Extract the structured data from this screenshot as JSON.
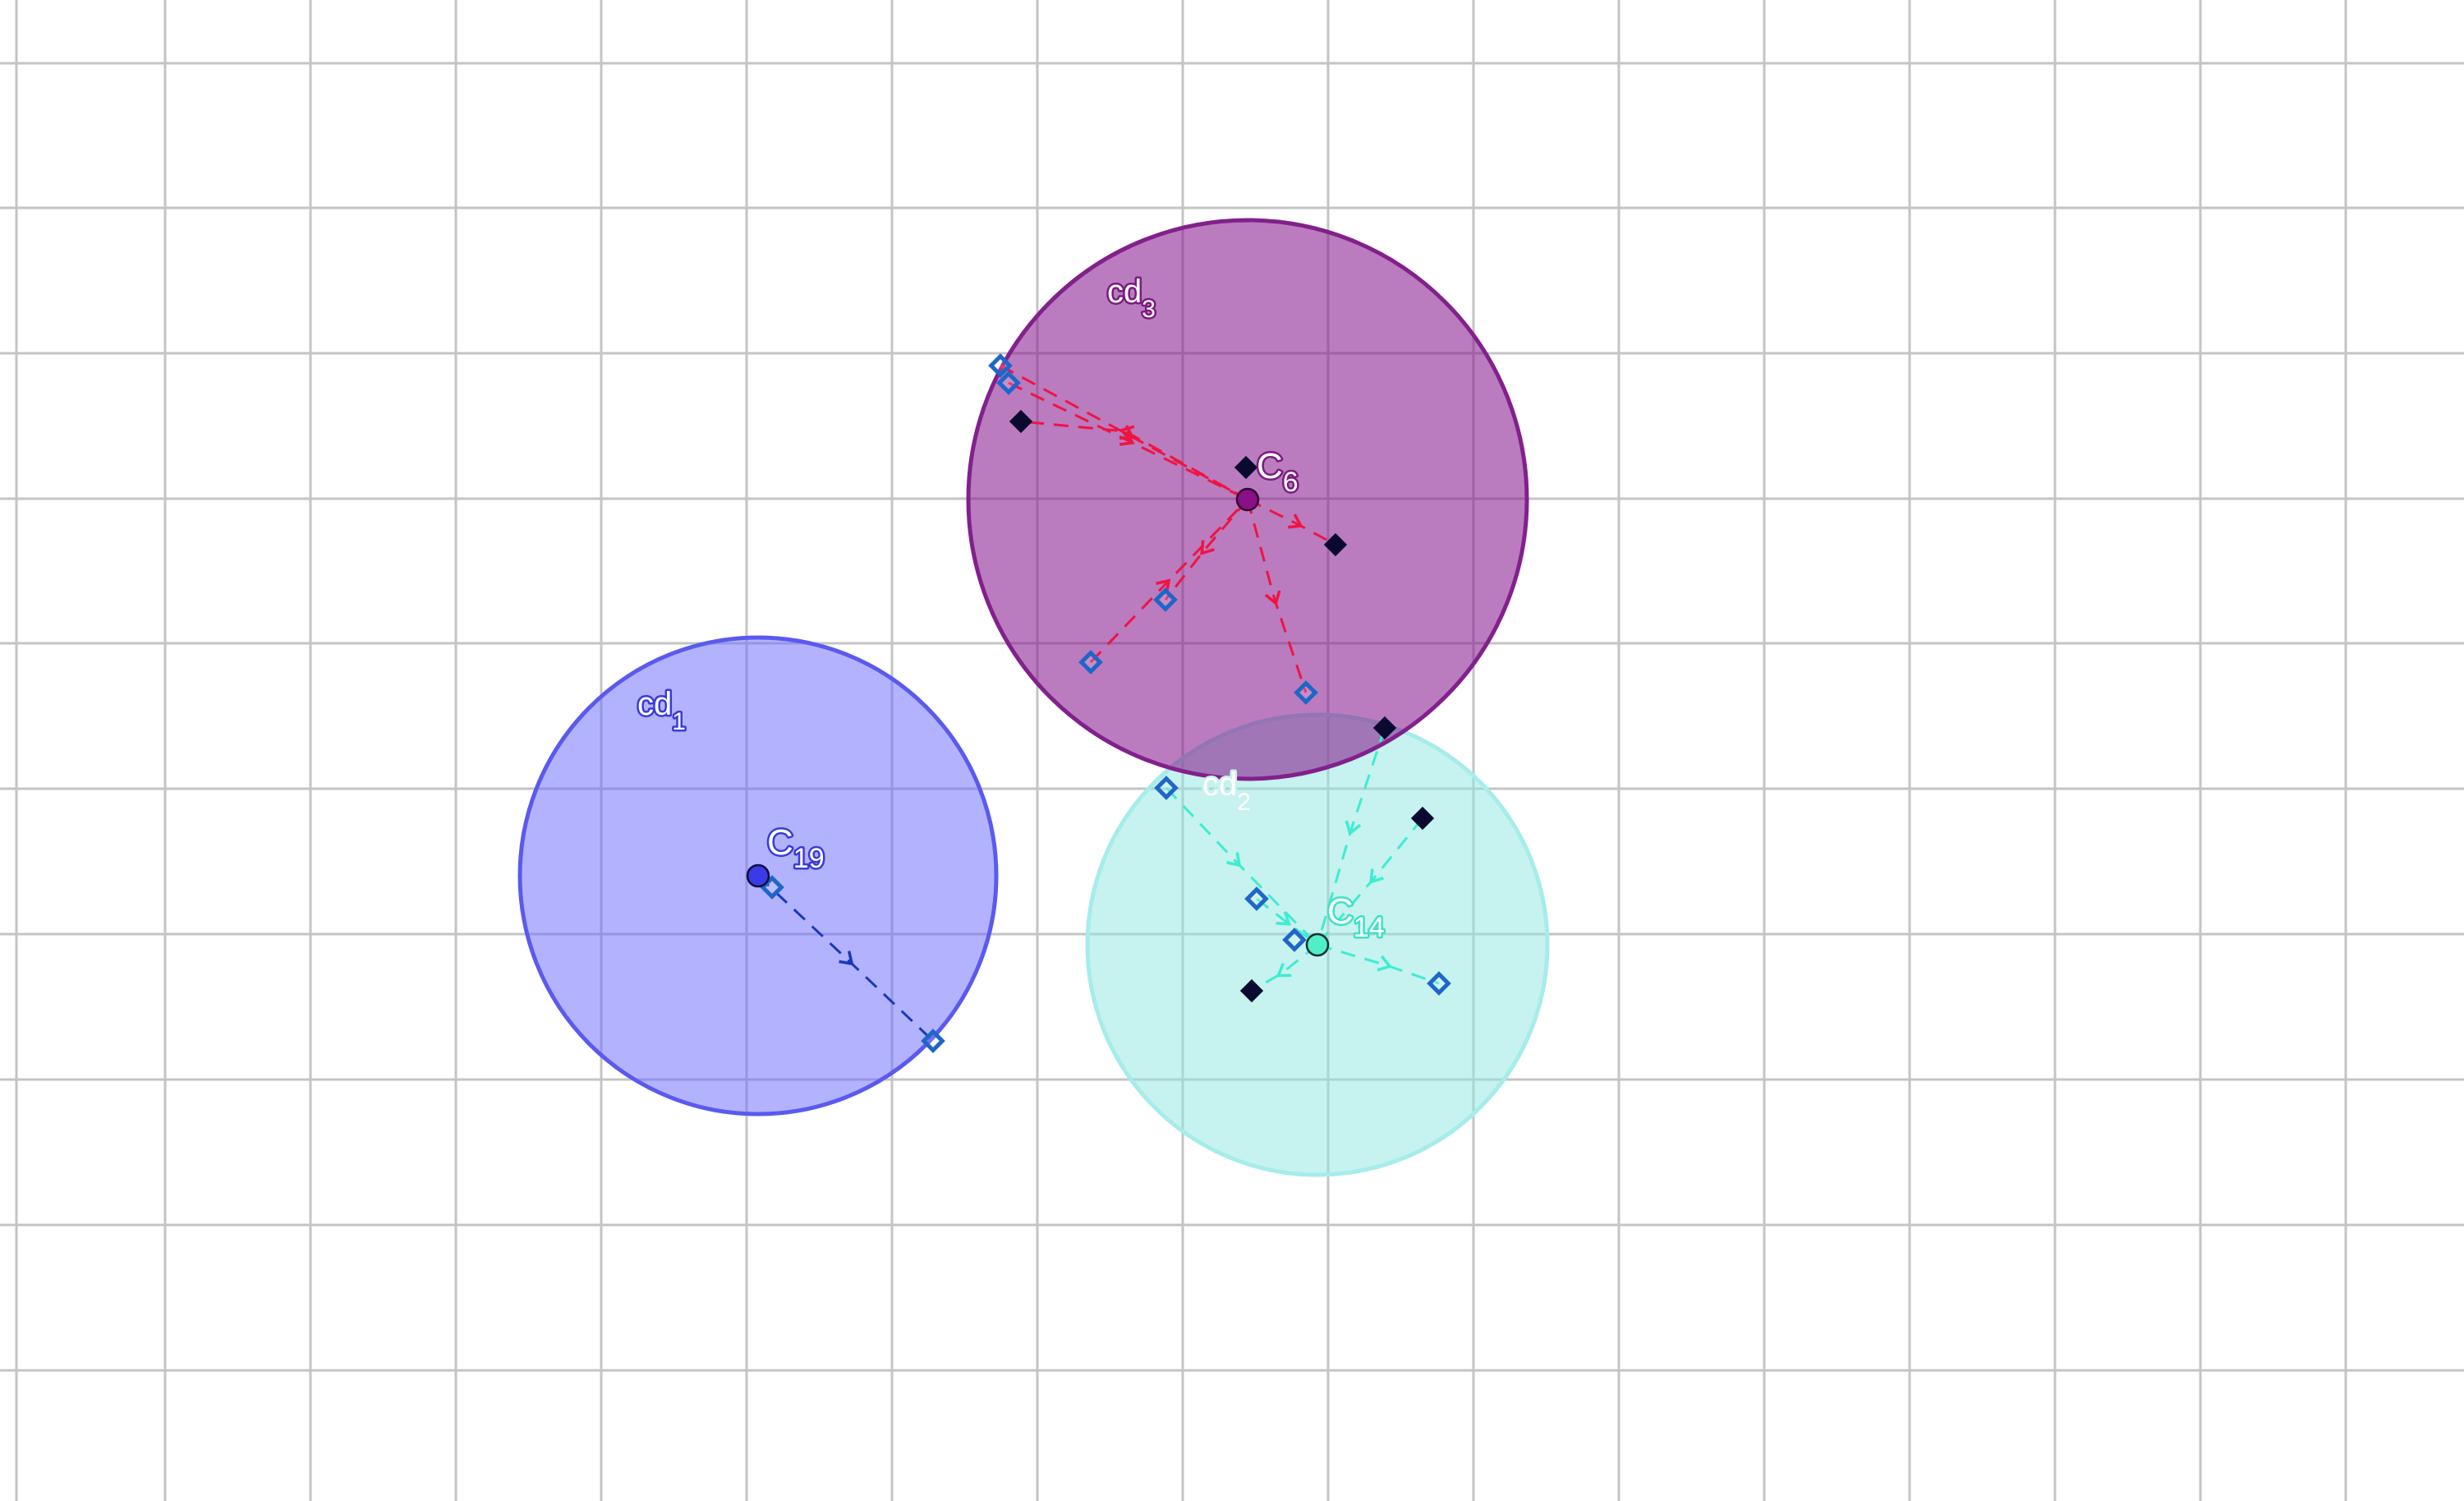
{
  "colors": {
    "background": "#ffffff",
    "grid": "#c4c4c4",
    "cd1_fill": "#6666ff",
    "cd1_stroke": "#5a5aee",
    "cd1_link": "#1a3ab8",
    "cd2_fill": "#8ee6e0",
    "cd2_stroke": "#a6ecea",
    "cd2_link": "#3eecd2",
    "cd3_fill": "#86198c",
    "cd3_stroke": "#82208c",
    "cd3_link": "#ee1444",
    "hollow_marker": "#1f66c8",
    "solid_marker": "#0a0a30"
  },
  "disks": [
    {
      "id": "cd1",
      "name": "cd",
      "sub": "1"
    },
    {
      "id": "cd2",
      "name": "cd",
      "sub": "2"
    },
    {
      "id": "cd3",
      "name": "cd",
      "sub": "3"
    }
  ],
  "centers": [
    {
      "id": "C19",
      "name": "C",
      "sub": "19",
      "disk": "cd1"
    },
    {
      "id": "C14",
      "name": "C",
      "sub": "14",
      "disk": "cd2"
    },
    {
      "id": "C6",
      "name": "C",
      "sub": "6",
      "disk": "cd3"
    }
  ],
  "marker_types": {
    "hollow": "hollow-diamond-marker",
    "solid": "solid-diamond-marker"
  }
}
